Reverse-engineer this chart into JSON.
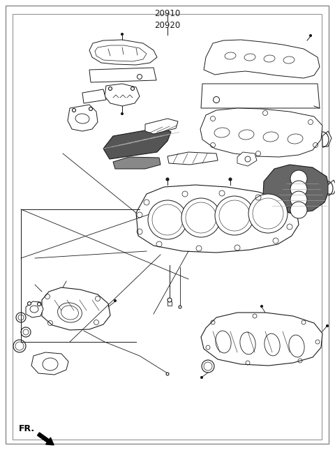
{
  "bg_color": "#ffffff",
  "border_color": "#888888",
  "line_color": "#1a1a1a",
  "title_outer": "20910",
  "title_inner": "20920",
  "fr_label": "FR.",
  "fig_width": 4.8,
  "fig_height": 6.55,
  "dpi": 100
}
